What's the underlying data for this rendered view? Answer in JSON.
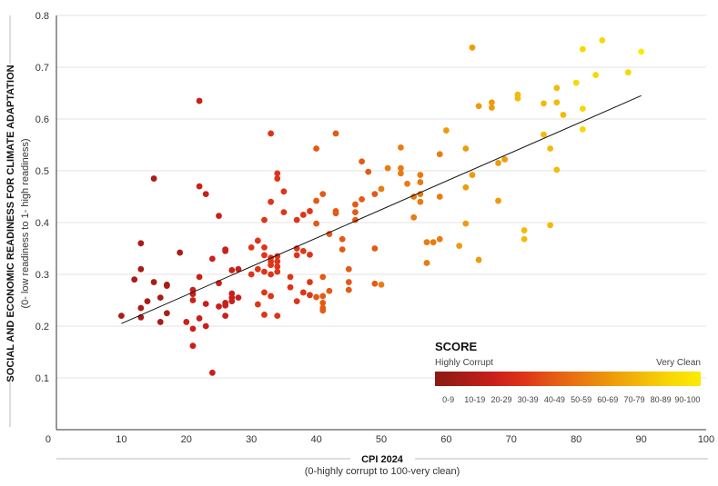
{
  "chart_data": {
    "type": "scatter",
    "xlabel": "CPI 2024",
    "xlabel_sub": "(0-highly corrupt to 100-very clean)",
    "ylabel": "SOCIAL AND ECONOMIC READINESS FOR CLIMATE ADAPTATION",
    "ylabel_sub": "(0- low readiness to 1- high readiness)",
    "xlim": [
      0,
      100
    ],
    "ylim": [
      0,
      0.8
    ],
    "x_ticks": [
      "0",
      "10",
      "20",
      "30",
      "40",
      "50",
      "60",
      "70",
      "80",
      "90",
      "100"
    ],
    "y_ticks": [
      "0.1",
      "0.2",
      "0.3",
      "0.4",
      "0.5",
      "0.6",
      "0.7",
      "0.8"
    ],
    "grid": "horizontal",
    "trendline": {
      "x": [
        10,
        90
      ],
      "y": [
        0.205,
        0.645
      ]
    },
    "legend": {
      "title": "SCORE",
      "low_label": "Highly Corrupt",
      "high_label": "Very Clean",
      "placement": "bottom-right",
      "bins": [
        "0-9",
        "10-19",
        "20-29",
        "30-39",
        "40-49",
        "50-59",
        "60-69",
        "70-79",
        "80-89",
        "90-100"
      ],
      "colors": [
        "#8b1a12",
        "#a81d16",
        "#c9201a",
        "#de3418",
        "#e45a14",
        "#e97b10",
        "#ee9b0c",
        "#f3ba08",
        "#f8d804",
        "#fbea00"
      ]
    },
    "points": [
      {
        "x": 10,
        "y": 0.22
      },
      {
        "x": 12,
        "y": 0.29
      },
      {
        "x": 13,
        "y": 0.36
      },
      {
        "x": 13,
        "y": 0.31
      },
      {
        "x": 13,
        "y": 0.235
      },
      {
        "x": 13,
        "y": 0.217
      },
      {
        "x": 14,
        "y": 0.248
      },
      {
        "x": 15,
        "y": 0.485
      },
      {
        "x": 15,
        "y": 0.285
      },
      {
        "x": 16,
        "y": 0.255
      },
      {
        "x": 16,
        "y": 0.208
      },
      {
        "x": 17,
        "y": 0.28
      },
      {
        "x": 17,
        "y": 0.278
      },
      {
        "x": 17,
        "y": 0.225
      },
      {
        "x": 19,
        "y": 0.342
      },
      {
        "x": 20,
        "y": 0.208
      },
      {
        "x": 21,
        "y": 0.27
      },
      {
        "x": 21,
        "y": 0.262
      },
      {
        "x": 21,
        "y": 0.25
      },
      {
        "x": 21,
        "y": 0.195
      },
      {
        "x": 21,
        "y": 0.162
      },
      {
        "x": 22,
        "y": 0.635
      },
      {
        "x": 22,
        "y": 0.47
      },
      {
        "x": 22,
        "y": 0.295
      },
      {
        "x": 22,
        "y": 0.215
      },
      {
        "x": 23,
        "y": 0.455
      },
      {
        "x": 23,
        "y": 0.243
      },
      {
        "x": 23,
        "y": 0.2
      },
      {
        "x": 24,
        "y": 0.33
      },
      {
        "x": 24,
        "y": 0.11
      },
      {
        "x": 25,
        "y": 0.413
      },
      {
        "x": 25,
        "y": 0.283
      },
      {
        "x": 25,
        "y": 0.238
      },
      {
        "x": 26,
        "y": 0.348
      },
      {
        "x": 26,
        "y": 0.345
      },
      {
        "x": 26,
        "y": 0.245
      },
      {
        "x": 26,
        "y": 0.24
      },
      {
        "x": 26,
        "y": 0.22
      },
      {
        "x": 27,
        "y": 0.308
      },
      {
        "x": 27,
        "y": 0.263
      },
      {
        "x": 27,
        "y": 0.255
      },
      {
        "x": 27,
        "y": 0.248
      },
      {
        "x": 28,
        "y": 0.31
      },
      {
        "x": 28,
        "y": 0.255
      },
      {
        "x": 30,
        "y": 0.352
      },
      {
        "x": 30,
        "y": 0.3
      },
      {
        "x": 31,
        "y": 0.365
      },
      {
        "x": 31,
        "y": 0.31
      },
      {
        "x": 31,
        "y": 0.242
      },
      {
        "x": 32,
        "y": 0.405
      },
      {
        "x": 32,
        "y": 0.352
      },
      {
        "x": 32,
        "y": 0.337
      },
      {
        "x": 32,
        "y": 0.305
      },
      {
        "x": 32,
        "y": 0.265
      },
      {
        "x": 32,
        "y": 0.222
      },
      {
        "x": 33,
        "y": 0.572
      },
      {
        "x": 33,
        "y": 0.44
      },
      {
        "x": 33,
        "y": 0.332
      },
      {
        "x": 33,
        "y": 0.325
      },
      {
        "x": 33,
        "y": 0.318
      },
      {
        "x": 33,
        "y": 0.3
      },
      {
        "x": 33,
        "y": 0.258
      },
      {
        "x": 34,
        "y": 0.495
      },
      {
        "x": 34,
        "y": 0.485
      },
      {
        "x": 34,
        "y": 0.335
      },
      {
        "x": 34,
        "y": 0.325
      },
      {
        "x": 34,
        "y": 0.315
      },
      {
        "x": 34,
        "y": 0.305
      },
      {
        "x": 34,
        "y": 0.22
      },
      {
        "x": 35,
        "y": 0.46
      },
      {
        "x": 35,
        "y": 0.42
      },
      {
        "x": 36,
        "y": 0.295
      },
      {
        "x": 36,
        "y": 0.275
      },
      {
        "x": 37,
        "y": 0.405
      },
      {
        "x": 37,
        "y": 0.35
      },
      {
        "x": 37,
        "y": 0.337
      },
      {
        "x": 37,
        "y": 0.248
      },
      {
        "x": 38,
        "y": 0.415
      },
      {
        "x": 38,
        "y": 0.345
      },
      {
        "x": 38,
        "y": 0.265
      },
      {
        "x": 39,
        "y": 0.422
      },
      {
        "x": 39,
        "y": 0.338
      },
      {
        "x": 39,
        "y": 0.285
      },
      {
        "x": 39,
        "y": 0.26
      },
      {
        "x": 40,
        "y": 0.543
      },
      {
        "x": 40,
        "y": 0.442
      },
      {
        "x": 40,
        "y": 0.398
      },
      {
        "x": 40,
        "y": 0.256
      },
      {
        "x": 41,
        "y": 0.455
      },
      {
        "x": 41,
        "y": 0.295
      },
      {
        "x": 41,
        "y": 0.258
      },
      {
        "x": 41,
        "y": 0.245
      },
      {
        "x": 41,
        "y": 0.235
      },
      {
        "x": 41,
        "y": 0.23
      },
      {
        "x": 42,
        "y": 0.378
      },
      {
        "x": 42,
        "y": 0.268
      },
      {
        "x": 43,
        "y": 0.572
      },
      {
        "x": 43,
        "y": 0.422
      },
      {
        "x": 43,
        "y": 0.418
      },
      {
        "x": 44,
        "y": 0.368
      },
      {
        "x": 44,
        "y": 0.348
      },
      {
        "x": 45,
        "y": 0.31
      },
      {
        "x": 45,
        "y": 0.285
      },
      {
        "x": 45,
        "y": 0.27
      },
      {
        "x": 46,
        "y": 0.435
      },
      {
        "x": 46,
        "y": 0.42
      },
      {
        "x": 46,
        "y": 0.405
      },
      {
        "x": 47,
        "y": 0.518
      },
      {
        "x": 47,
        "y": 0.445
      },
      {
        "x": 48,
        "y": 0.498
      },
      {
        "x": 49,
        "y": 0.455
      },
      {
        "x": 49,
        "y": 0.35
      },
      {
        "x": 49,
        "y": 0.282
      },
      {
        "x": 50,
        "y": 0.465
      },
      {
        "x": 50,
        "y": 0.28
      },
      {
        "x": 51,
        "y": 0.505
      },
      {
        "x": 53,
        "y": 0.545
      },
      {
        "x": 53,
        "y": 0.505
      },
      {
        "x": 53,
        "y": 0.495
      },
      {
        "x": 54,
        "y": 0.475
      },
      {
        "x": 55,
        "y": 0.45
      },
      {
        "x": 55,
        "y": 0.41
      },
      {
        "x": 56,
        "y": 0.492
      },
      {
        "x": 56,
        "y": 0.478
      },
      {
        "x": 56,
        "y": 0.455
      },
      {
        "x": 56,
        "y": 0.44
      },
      {
        "x": 57,
        "y": 0.362
      },
      {
        "x": 57,
        "y": 0.322
      },
      {
        "x": 58,
        "y": 0.362
      },
      {
        "x": 59,
        "y": 0.532
      },
      {
        "x": 59,
        "y": 0.45
      },
      {
        "x": 59,
        "y": 0.368
      },
      {
        "x": 60,
        "y": 0.578
      },
      {
        "x": 62,
        "y": 0.355
      },
      {
        "x": 63,
        "y": 0.543
      },
      {
        "x": 63,
        "y": 0.468
      },
      {
        "x": 63,
        "y": 0.398
      },
      {
        "x": 64,
        "y": 0.738
      },
      {
        "x": 64,
        "y": 0.492
      },
      {
        "x": 65,
        "y": 0.625
      },
      {
        "x": 65,
        "y": 0.328
      },
      {
        "x": 67,
        "y": 0.632
      },
      {
        "x": 67,
        "y": 0.622
      },
      {
        "x": 68,
        "y": 0.515
      },
      {
        "x": 68,
        "y": 0.442
      },
      {
        "x": 69,
        "y": 0.522
      },
      {
        "x": 71,
        "y": 0.647
      },
      {
        "x": 71,
        "y": 0.64
      },
      {
        "x": 72,
        "y": 0.385
      },
      {
        "x": 72,
        "y": 0.368
      },
      {
        "x": 75,
        "y": 0.63
      },
      {
        "x": 75,
        "y": 0.57
      },
      {
        "x": 76,
        "y": 0.543
      },
      {
        "x": 76,
        "y": 0.395
      },
      {
        "x": 77,
        "y": 0.66
      },
      {
        "x": 77,
        "y": 0.632
      },
      {
        "x": 77,
        "y": 0.502
      },
      {
        "x": 78,
        "y": 0.608
      },
      {
        "x": 80,
        "y": 0.67
      },
      {
        "x": 81,
        "y": 0.735
      },
      {
        "x": 81,
        "y": 0.62
      },
      {
        "x": 81,
        "y": 0.58
      },
      {
        "x": 83,
        "y": 0.685
      },
      {
        "x": 84,
        "y": 0.752
      },
      {
        "x": 88,
        "y": 0.69
      },
      {
        "x": 90,
        "y": 0.73
      }
    ]
  }
}
